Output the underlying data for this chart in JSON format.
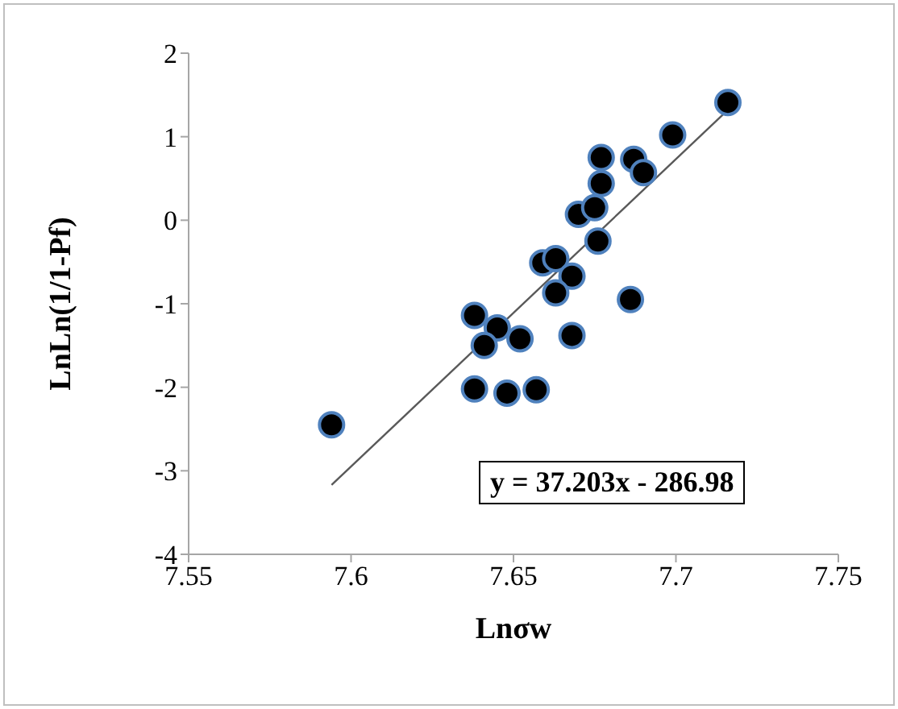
{
  "chart_data": {
    "type": "scatter",
    "xlabel": "Lnσw",
    "ylabel": "LnLn(1/1-Pf)",
    "series": [
      {
        "color": "#000000",
        "marker": "circle",
        "x": [
          7.594,
          7.716,
          7.699,
          7.677,
          7.687,
          7.69,
          7.677,
          7.67,
          7.675,
          7.676,
          7.659,
          7.663,
          7.668,
          7.663,
          7.686,
          7.638,
          7.645,
          7.641,
          7.652,
          7.668,
          7.638,
          7.648,
          7.657
        ],
        "values": [
          -2.45,
          1.41,
          1.02,
          0.75,
          0.73,
          0.57,
          0.44,
          0.07,
          0.15,
          -0.25,
          -0.51,
          -0.46,
          -0.67,
          -0.87,
          -0.95,
          -1.14,
          -1.29,
          -1.5,
          -1.42,
          -1.38,
          -2.02,
          -2.07,
          -2.03
        ]
      },
      {
        "type": "line",
        "marker": "none",
        "color": "#595959",
        "x": [
          7.594,
          7.716
        ],
        "values": [
          -3.17,
          1.32
        ]
      }
    ],
    "annotations": [
      "y = 37.203x - 286.98"
    ],
    "xlim": [
      7.55,
      7.75
    ],
    "xticks": [
      7.55,
      7.6,
      7.65,
      7.7,
      7.75
    ],
    "ylim": [
      -4,
      2
    ],
    "yticks": [
      -4,
      -3,
      -2,
      -1,
      0,
      1,
      2
    ],
    "grid": false,
    "legend": false
  }
}
